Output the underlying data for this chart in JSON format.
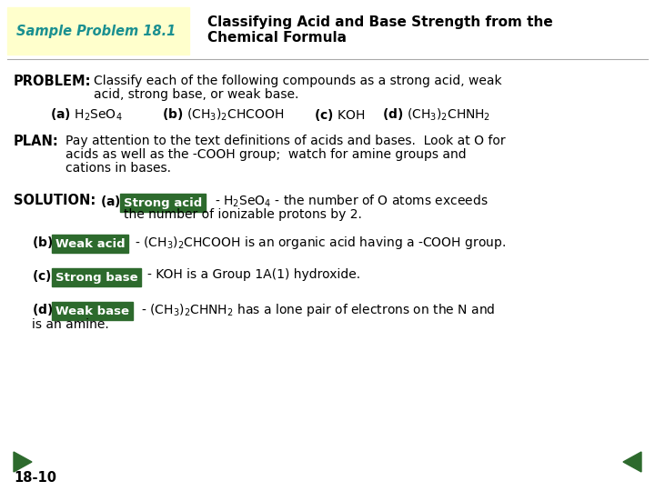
{
  "background_color": "#ffffff",
  "header_box_color": "#ffffcc",
  "header_label": "Sample Problem 18.1",
  "header_label_color": "#1a9090",
  "header_title_line1": "Classifying Acid and Base Strength from the",
  "header_title_line2": "Chemical Formula",
  "header_title_color": "#000000",
  "green_box_color": "#2d6a2d",
  "green_box_text_color": "#ffffff",
  "body_text_color": "#000000",
  "slide_number": "18-10",
  "nav_arrow_color": "#2d6a2d",
  "fig_width": 7.2,
  "fig_height": 5.4,
  "dpi": 100
}
